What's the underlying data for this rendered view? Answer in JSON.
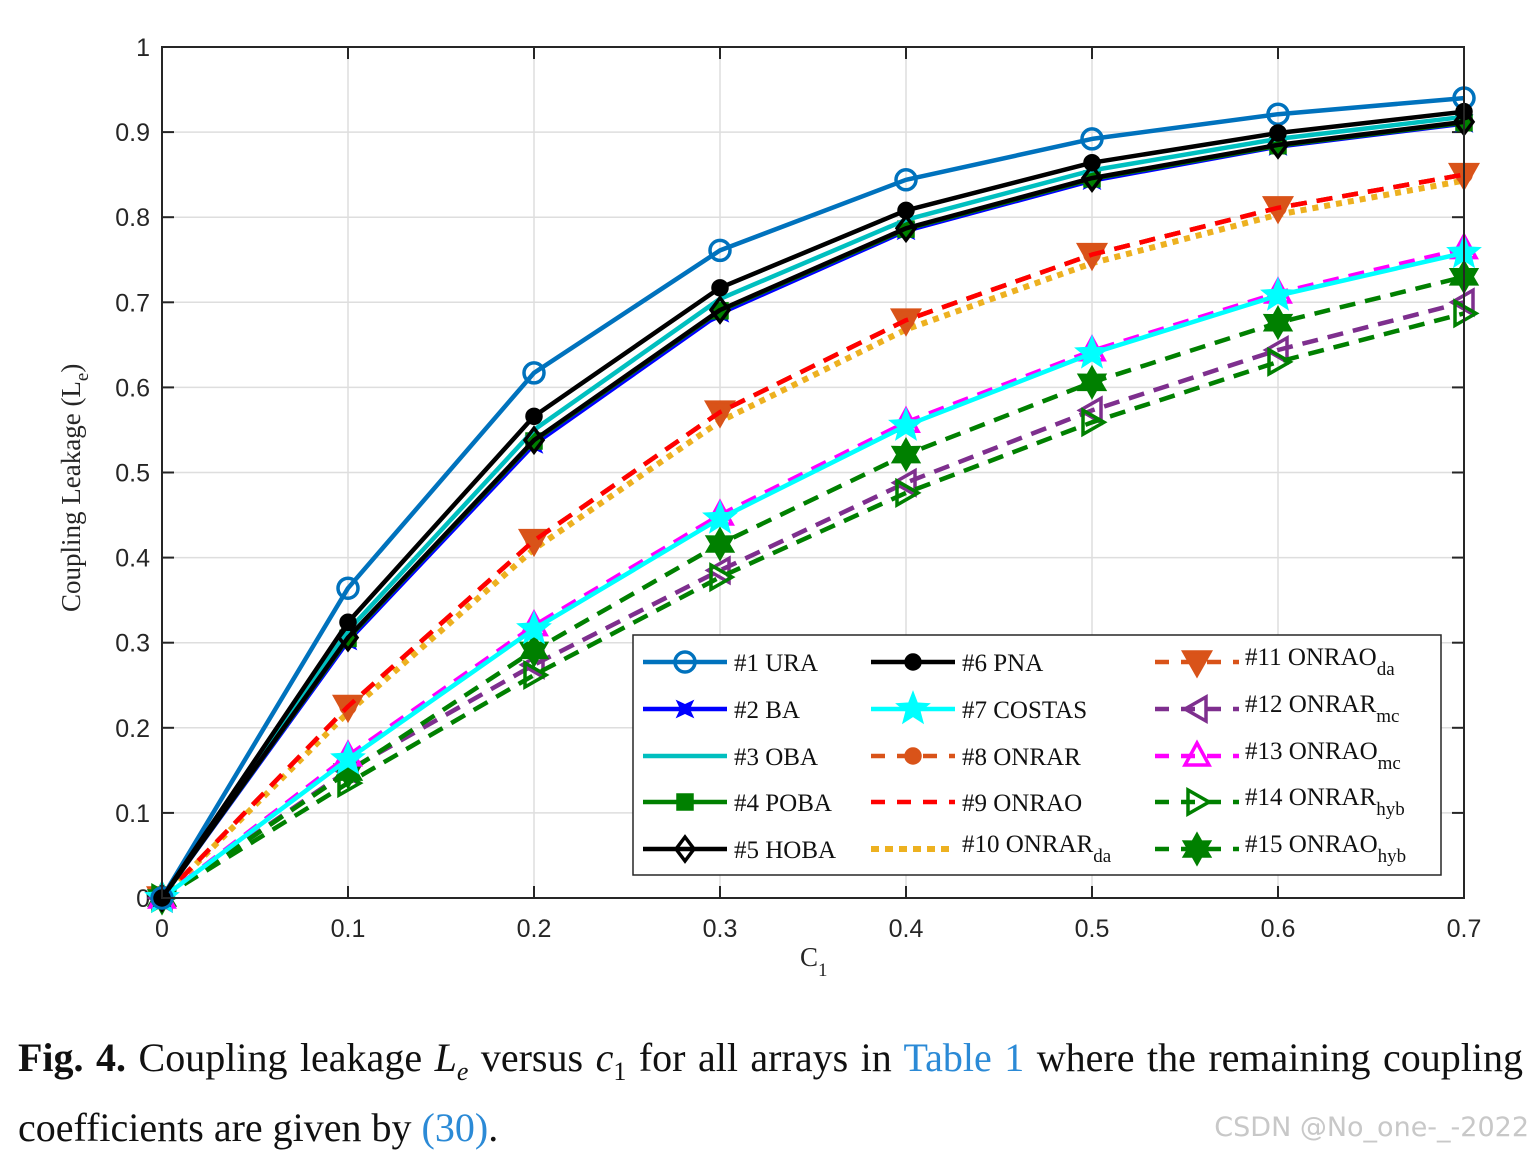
{
  "chart_data": {
    "type": "line",
    "xlabel": "C",
    "xlabel_sub": "1",
    "ylabel": "Coupling Leakage (L",
    "ylabel_sub": "e",
    "ylabel_end": ")",
    "xlim": [
      0,
      0.7
    ],
    "ylim": [
      0,
      1
    ],
    "grid": true,
    "legend_position": "bottom-right",
    "x": [
      0,
      0.1,
      0.2,
      0.3,
      0.4,
      0.5,
      0.6,
      0.7
    ],
    "x_ticks": [
      "0",
      "0.1",
      "0.2",
      "0.3",
      "0.4",
      "0.5",
      "0.6",
      "0.7"
    ],
    "y_ticks": [
      "0",
      "0.1",
      "0.2",
      "0.3",
      "0.4",
      "0.5",
      "0.6",
      "0.7",
      "0.8",
      "0.9",
      "1"
    ],
    "series": [
      {
        "label": "#1 URA",
        "sub": "",
        "color": "#0072BD",
        "dash": "solid",
        "marker": "circle-open",
        "values": [
          0,
          0.364,
          0.617,
          0.761,
          0.844,
          0.892,
          0.921,
          0.94
        ]
      },
      {
        "label": "#2 BA",
        "sub": "",
        "color": "#0000FF",
        "dash": "solid",
        "marker": "cross-filled",
        "values": [
          0,
          0.302,
          0.533,
          0.687,
          0.784,
          0.843,
          0.883,
          0.91
        ]
      },
      {
        "label": "#3 OBA",
        "sub": "",
        "color": "#00BFBF",
        "dash": "solid",
        "marker": "none",
        "values": [
          0,
          0.314,
          0.55,
          0.704,
          0.797,
          0.855,
          0.892,
          0.918
        ]
      },
      {
        "label": "#4 POBA",
        "sub": "",
        "color": "#008000",
        "dash": "solid",
        "marker": "square-filled",
        "values": [
          0,
          0.305,
          0.537,
          0.69,
          0.786,
          0.845,
          0.884,
          0.911
        ]
      },
      {
        "label": "#5 HOBA",
        "sub": "",
        "color": "#000000",
        "dash": "solid",
        "marker": "diamond-open",
        "values": [
          0,
          0.306,
          0.538,
          0.691,
          0.787,
          0.846,
          0.885,
          0.912
        ]
      },
      {
        "label": "#6 PNA",
        "sub": "",
        "color": "#000000",
        "dash": "solid",
        "marker": "circle-filled",
        "values": [
          0,
          0.324,
          0.566,
          0.717,
          0.808,
          0.864,
          0.899,
          0.924
        ]
      },
      {
        "label": "#7 COSTAS",
        "sub": "",
        "color": "#00FFFF",
        "dash": "solid",
        "marker": "star-filled",
        "values": [
          0,
          0.163,
          0.316,
          0.446,
          0.555,
          0.64,
          0.708,
          0.758
        ]
      },
      {
        "label": "#8 ONRAR",
        "sub": "",
        "color": "#D95319",
        "dash": "dashed",
        "marker": "circle-filled",
        "values": [
          0,
          0.225,
          0.42,
          0.571,
          0.679,
          0.756,
          0.811,
          0.85
        ]
      },
      {
        "label": "#9 ONRAO",
        "sub": "",
        "color": "#FF0000",
        "dash": "dashed",
        "marker": "none",
        "values": [
          0,
          0.225,
          0.42,
          0.571,
          0.679,
          0.756,
          0.811,
          0.85
        ]
      },
      {
        "label": "#10 ONRAR",
        "sub": "da",
        "color": "#EDB120",
        "dash": "dotted",
        "marker": "none",
        "values": [
          0,
          0.218,
          0.41,
          0.56,
          0.668,
          0.746,
          0.803,
          0.843
        ]
      },
      {
        "label": "#11 ONRAO",
        "sub": "da",
        "color": "#D95319",
        "dash": "dashed",
        "marker": "triangle-down-filled",
        "values": [
          0,
          0.225,
          0.42,
          0.571,
          0.679,
          0.756,
          0.811,
          0.85
        ]
      },
      {
        "label": "#12 ONRAR",
        "sub": "mc",
        "color": "#7E2F8E",
        "dash": "dashed",
        "marker": "triangle-left-open",
        "values": [
          0,
          0.15,
          0.274,
          0.385,
          0.488,
          0.573,
          0.644,
          0.7
        ]
      },
      {
        "label": "#13 ONRAO",
        "sub": "mc",
        "color": "#FF00FF",
        "dash": "dashed",
        "marker": "triangle-up-open",
        "values": [
          0,
          0.167,
          0.32,
          0.45,
          0.559,
          0.643,
          0.711,
          0.763
        ]
      },
      {
        "label": "#14 ONRAR",
        "sub": "hyb",
        "color": "#008000",
        "dash": "dashed",
        "marker": "triangle-right-open",
        "values": [
          0,
          0.135,
          0.262,
          0.377,
          0.476,
          0.559,
          0.63,
          0.687
        ]
      },
      {
        "label": "#15 ONRAO",
        "sub": "hyb",
        "color": "#008000",
        "dash": "dashed",
        "marker": "hexagram-filled",
        "values": [
          0,
          0.148,
          0.291,
          0.416,
          0.521,
          0.606,
          0.676,
          0.73
        ]
      }
    ]
  },
  "caption": {
    "fig": "Fig. 4.",
    "t1": " Coupling leakage ",
    "le": "L",
    "le_sub": "e",
    "t2": " versus ",
    "c1": "c",
    "c1_sub": "1",
    "t3": " for all arrays in ",
    "link1": "Table 1",
    "t4": " where the remaining coupling coefficients are given by ",
    "link2": "(30)",
    "t5": "."
  },
  "watermark": "CSDN @No_one-_-2022"
}
